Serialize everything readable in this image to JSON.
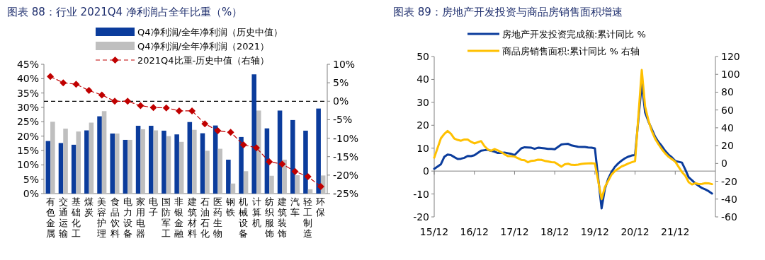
{
  "chart_data": [
    {
      "type": "bar",
      "title": "图表 88：行业 2021Q4 净利润占全年比重（%）",
      "legend": "top",
      "categories": [
        "有色金属",
        "交通运输",
        "基础化工",
        "煤炭",
        "美容护理",
        "食品饮料",
        "电力设备",
        "家用电器",
        "电子",
        "国防军工",
        "非银金融",
        "建筑材料",
        "石油石化",
        "医药生物",
        "钢铁",
        "机械设备",
        "计算机",
        "纺织服饰",
        "建筑装饰",
        "汽车",
        "轻工制造",
        "环保"
      ],
      "series": [
        {
          "name": "Q4净利润/全年净利润（历史中值）",
          "color": "#0b3c9c",
          "values": [
            18.3,
            17.6,
            17.0,
            22.0,
            26.9,
            20.9,
            18.7,
            23.6,
            23.6,
            21.9,
            20.6,
            24.9,
            21.0,
            23.7,
            11.8,
            19.7,
            41.5,
            22.7,
            28.9,
            25.6,
            21.9,
            29.6
          ]
        },
        {
          "name": "Q4净利润/全年净利润（2021）",
          "color": "#bfbfbf",
          "values": [
            25.0,
            22.6,
            21.6,
            24.7,
            28.7,
            20.9,
            18.7,
            22.4,
            22.0,
            20.0,
            18.0,
            22.2,
            14.9,
            15.6,
            3.5,
            7.8,
            28.9,
            6.2,
            11.8,
            6.4,
            1.5,
            6.3
          ]
        },
        {
          "name": "2021Q4比重-历史中值（右轴）",
          "type": "line",
          "axis": "y2",
          "color": "#c00000",
          "marker": "diamond",
          "line_style": "dashed",
          "values": [
            6.7,
            5.0,
            4.6,
            2.9,
            1.7,
            0.0,
            0.0,
            -1.2,
            -1.7,
            -1.8,
            -2.6,
            -2.6,
            -6.1,
            -8.0,
            -8.4,
            -11.8,
            -12.6,
            -16.4,
            -17.0,
            -19.0,
            -20.4,
            -23.1
          ]
        }
      ],
      "ylim": [
        0,
        45
      ],
      "yticks": [
        {
          "value": 0,
          "label": "0%"
        },
        {
          "value": 5,
          "label": "5%"
        },
        {
          "value": 10,
          "label": "10%"
        },
        {
          "value": 15,
          "label": "15%"
        },
        {
          "value": 20,
          "label": "20%"
        },
        {
          "value": 25,
          "label": "25%"
        },
        {
          "value": 30,
          "label": "30%"
        },
        {
          "value": 35,
          "label": "35%"
        },
        {
          "value": 40,
          "label": "40%"
        },
        {
          "value": 45,
          "label": "45%"
        }
      ],
      "y2lim": [
        -25,
        10
      ],
      "y2ticks": [
        {
          "value": -25,
          "label": "-25%"
        },
        {
          "value": -20,
          "label": "-20%"
        },
        {
          "value": -15,
          "label": "-15%"
        },
        {
          "value": -10,
          "label": "-10%"
        },
        {
          "value": -5,
          "label": "-5%"
        },
        {
          "value": 0,
          "label": "0%"
        },
        {
          "value": 5,
          "label": "5%"
        },
        {
          "value": 10,
          "label": "10%"
        }
      ],
      "ref_lines": [
        {
          "axis": "y2",
          "value": 0,
          "color": "#000000",
          "line_style": "dashed"
        }
      ]
    },
    {
      "type": "line",
      "title": "图表 89：房地产开发投资与商品房销售面积增速",
      "legend": "top",
      "x": [
        "2015-12",
        "2016-02",
        "2016-03",
        "2016-04",
        "2016-05",
        "2016-06",
        "2016-07",
        "2016-08",
        "2016-09",
        "2016-10",
        "2016-11",
        "2016-12",
        "2017-02",
        "2017-03",
        "2017-04",
        "2017-05",
        "2017-06",
        "2017-07",
        "2017-08",
        "2017-09",
        "2017-10",
        "2017-11",
        "2017-12",
        "2018-02",
        "2018-03",
        "2018-04",
        "2018-05",
        "2018-06",
        "2018-07",
        "2018-08",
        "2018-09",
        "2018-10",
        "2018-11",
        "2018-12",
        "2019-02",
        "2019-03",
        "2019-04",
        "2019-05",
        "2019-06",
        "2019-07",
        "2019-08",
        "2019-09",
        "2019-10",
        "2019-11",
        "2019-12",
        "2020-02",
        "2020-03",
        "2020-04",
        "2020-05",
        "2020-06",
        "2020-07",
        "2020-08",
        "2020-09",
        "2020-10",
        "2020-11",
        "2020-12",
        "2021-02",
        "2021-03",
        "2021-04",
        "2021-05",
        "2021-06",
        "2021-07",
        "2021-08",
        "2021-09",
        "2021-10",
        "2021-11",
        "2021-12",
        "2022-02",
        "2022-03",
        "2022-04",
        "2022-05",
        "2022-06",
        "2022-07",
        "2022-08",
        "2022-09",
        "2022-10",
        "2022-11"
      ],
      "series": [
        {
          "name": "房地产开发投资完成额:累计同比 %",
          "color": "#0b3c9c",
          "values": [
            1.0,
            3.0,
            6.2,
            7.2,
            7.0,
            6.1,
            5.3,
            5.4,
            5.8,
            6.6,
            6.5,
            6.9,
            8.9,
            9.1,
            9.3,
            8.8,
            8.5,
            7.9,
            7.9,
            8.1,
            7.8,
            7.5,
            7.0,
            9.9,
            10.4,
            10.3,
            10.2,
            9.7,
            10.2,
            10.1,
            9.9,
            9.7,
            9.7,
            9.5,
            11.6,
            11.8,
            11.9,
            11.2,
            10.9,
            10.6,
            10.5,
            10.5,
            10.3,
            10.2,
            9.9,
            -16.3,
            -7.7,
            -3.3,
            -0.3,
            1.9,
            3.4,
            4.6,
            5.6,
            6.3,
            6.8,
            7.0,
            38.3,
            25.6,
            21.6,
            18.3,
            15.0,
            12.7,
            10.9,
            8.8,
            7.2,
            6.0,
            4.4,
            3.7,
            0.7,
            -2.7,
            -4.0,
            -5.4,
            -6.4,
            -7.4,
            -8.0,
            -8.8,
            -9.8
          ]
        },
        {
          "name": "商品房销售面积:累计同比 % 右轴",
          "color": "#ffc000",
          "axis": "y2",
          "values": [
            6.5,
            28.2,
            33.1,
            36.5,
            33.2,
            27.9,
            26.4,
            25.5,
            26.9,
            26.8,
            24.3,
            22.5,
            25.1,
            19.5,
            15.7,
            14.3,
            16.1,
            14.7,
            12.7,
            10.3,
            8.2,
            8.2,
            7.7,
            4.1,
            3.6,
            1.3,
            2.9,
            3.3,
            4.2,
            4.0,
            2.9,
            2.2,
            1.4,
            1.3,
            -3.6,
            -0.9,
            -0.3,
            -1.6,
            -1.8,
            -1.3,
            -0.6,
            -0.1,
            0.1,
            0.2,
            -0.1,
            -39.9,
            -26.3,
            -19.3,
            -12.3,
            -8.4,
            -5.8,
            -3.3,
            -1.8,
            0.0,
            1.3,
            2.6,
            104.9,
            63.8,
            48.1,
            36.3,
            27.7,
            21.5,
            15.9,
            11.3,
            7.5,
            4.8,
            1.9,
            -9.6,
            -13.8,
            -20.9,
            -23.6,
            -22.2,
            -23.1,
            -23.0,
            -22.2,
            -22.3,
            -23.2
          ]
        }
      ],
      "xlim": [
        "2015-12",
        "2022-12"
      ],
      "xticks": [
        {
          "value": "2015-12",
          "label": "15/12"
        },
        {
          "value": "2016-12",
          "label": "16/12"
        },
        {
          "value": "2017-12",
          "label": "17/12"
        },
        {
          "value": "2018-12",
          "label": "18/12"
        },
        {
          "value": "2019-12",
          "label": "19/12"
        },
        {
          "value": "2020-12",
          "label": "20/12"
        },
        {
          "value": "2021-12",
          "label": "21/12"
        }
      ],
      "ylim": [
        -20,
        50
      ],
      "yticks": [
        -20,
        -10,
        0,
        10,
        20,
        30,
        40,
        50
      ],
      "y2lim": [
        -60,
        120
      ],
      "y2ticks": [
        -60,
        -40,
        -20,
        0,
        20,
        40,
        60,
        80,
        100,
        120
      ]
    }
  ]
}
